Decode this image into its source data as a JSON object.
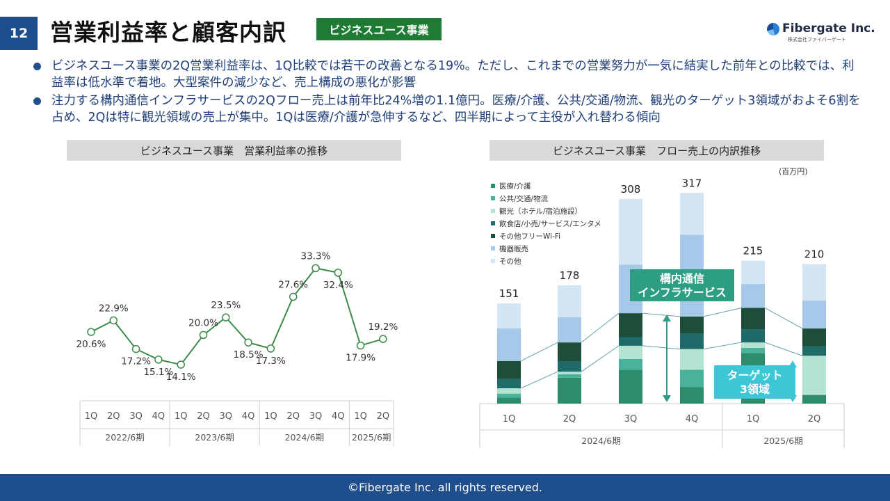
{
  "header": {
    "page_number": "12",
    "title": "営業利益率と顧客内訳",
    "badge": "ビジネスユース事業",
    "logo_text": "Fibergate Inc.",
    "logo_sub": "株式会社ファイバーゲート"
  },
  "bullets": [
    "ビジネスユース事業の2Q営業利益率は、1Q比較では若干の改善となる19%。ただし、これまでの営業努力が一気に結実した前年との比較では、利益率は低水準で着地。大型案件の減少など、売上構成の悪化が影響",
    "注力する構内通信インフラサービスの2Qフロー売上は前年比24%増の1.1億円。医療/介護、公共/交通/物流、観光のターゲット3領域がおよそ6割を占め、2Qは特に観光領域の売上が集中。1Qは医療/介護が急伸するなど、四半期によって主役が入れ替わる傾向"
  ],
  "colors": {
    "brand": "#1f4e8c",
    "badge": "#1e7b34",
    "line": "#3b8a4a",
    "callout_green": "#2e9e82",
    "callout_teal": "#3cc6d6"
  },
  "footer": "©Fibergate Inc. all rights reserved.",
  "chart_data": [
    {
      "type": "line",
      "title": "ビジネスユース事業　営業利益率の推移",
      "categories": [
        "1Q",
        "2Q",
        "3Q",
        "4Q",
        "1Q",
        "2Q",
        "3Q",
        "4Q",
        "1Q",
        "2Q",
        "3Q",
        "4Q",
        "1Q",
        "2Q"
      ],
      "groups": [
        {
          "label": "2022/6期",
          "count": 4
        },
        {
          "label": "2023/6期",
          "count": 4
        },
        {
          "label": "2024/6期",
          "count": 4
        },
        {
          "label": "2025/6期",
          "count": 2
        }
      ],
      "values": [
        20.6,
        22.9,
        17.2,
        15.1,
        14.1,
        20.0,
        23.5,
        18.5,
        17.3,
        27.6,
        33.3,
        32.4,
        17.9,
        19.2
      ],
      "data_labels": [
        "20.6%",
        "22.9%",
        "17.2%",
        "15.1%",
        "14.1%",
        "20.0%",
        "23.5%",
        "18.5%",
        "17.3%",
        "27.6%",
        "33.3%",
        "32.4%",
        "17.9%",
        "19.2%"
      ],
      "label_position": [
        "below",
        "above",
        "below",
        "below",
        "below",
        "above",
        "above",
        "below",
        "below",
        "above",
        "above",
        "below",
        "below",
        "above"
      ]
    },
    {
      "type": "bar",
      "stacked": true,
      "title": "ビジネスユース事業　フロー売上の内訳推移",
      "unit": "(百万円)",
      "categories": [
        "1Q",
        "2Q",
        "3Q",
        "4Q",
        "1Q",
        "2Q"
      ],
      "groups": [
        {
          "label": "2024/6期",
          "count": 4
        },
        {
          "label": "2025/6期",
          "count": 2
        }
      ],
      "totals": [
        151,
        178,
        308,
        317,
        215,
        210
      ],
      "series": [
        {
          "name": "医療/介護",
          "color": "#2e8b6e",
          "values": [
            9,
            39,
            51,
            25,
            76,
            13
          ]
        },
        {
          "name": "公共/交通/物流",
          "color": "#48b39a",
          "values": [
            6,
            5,
            16,
            26,
            8,
            0
          ]
        },
        {
          "name": "観光（ホテル/宿泊施設）",
          "color": "#b5e3d2",
          "values": [
            8,
            4,
            20,
            31,
            8,
            59
          ]
        },
        {
          "name": "飲食店/小売/サービス/エンタメ",
          "color": "#1f6b6a",
          "values": [
            14,
            15,
            13,
            23,
            20,
            14
          ]
        },
        {
          "name": "その他フリーWi-Fi",
          "color": "#1e4d3a",
          "values": [
            27,
            29,
            36,
            26,
            32,
            27
          ]
        },
        {
          "name": "機器販売",
          "color": "#a7c8e8",
          "values": [
            49,
            38,
            73,
            123,
            36,
            42
          ]
        },
        {
          "name": "その他",
          "color": "#d4e6f4",
          "values": [
            38,
            48,
            99,
            63,
            35,
            55
          ]
        }
      ],
      "callouts": [
        "構内通信\nインフラサービス",
        "ターゲット\n3領域"
      ]
    }
  ]
}
